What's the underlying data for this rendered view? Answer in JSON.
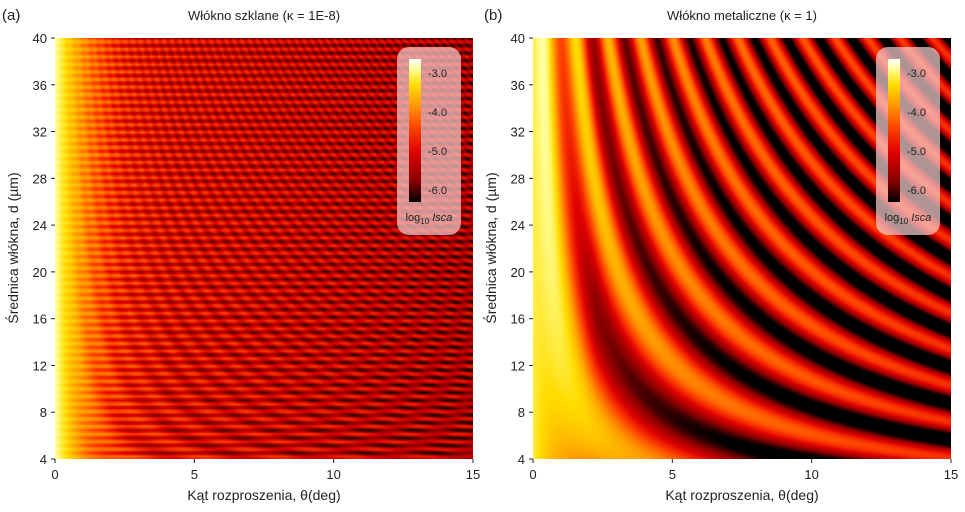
{
  "colors": {
    "colormap": [
      "#000000",
      "#8b0000",
      "#e00000",
      "#ff4400",
      "#ff9900",
      "#ffdd00",
      "#ffff99",
      "#ffffff"
    ],
    "axis": "#222222",
    "legend_box": "#f4cccc"
  },
  "chart_data": [
    {
      "type": "heatmap",
      "panel_label": "(a)",
      "title": "Włókno szklane (κ = 1E-8)",
      "xlabel": "Kąt rozproszenia, θ(deg)",
      "ylabel": "Średnica włókna, d (µm)",
      "xlim": [
        0,
        15
      ],
      "ylim": [
        4,
        40
      ],
      "xticks": [
        "0",
        "5",
        "10",
        "15"
      ],
      "yticks": [
        "4",
        "8",
        "12",
        "16",
        "20",
        "24",
        "28",
        "32",
        "36",
        "40"
      ],
      "colorbar": {
        "ticks": [
          "-3.0",
          "-4.0",
          "-5.0",
          "-6.0"
        ],
        "label_main": "log",
        "label_sub": "10",
        "label_var": "Isca",
        "range": [
          -6.5,
          -2.8
        ]
      }
    },
    {
      "type": "heatmap",
      "panel_label": "(b)",
      "title": "Włókno metaliczne (κ = 1)",
      "xlabel": "Kąt rozproszenia, θ(deg)",
      "ylabel": "Średnica włókna, d (µm)",
      "xlim": [
        0,
        15
      ],
      "ylim": [
        4,
        40
      ],
      "xticks": [
        "0",
        "5",
        "10",
        "15"
      ],
      "yticks": [
        "4",
        "8",
        "12",
        "16",
        "20",
        "24",
        "28",
        "32",
        "36",
        "40"
      ],
      "colorbar": {
        "ticks": [
          "-3.0",
          "-4.0",
          "-5.0",
          "-6.0"
        ],
        "label_main": "log",
        "label_sub": "10",
        "label_var": "Isca",
        "range": [
          -6.5,
          -2.8
        ]
      }
    }
  ]
}
